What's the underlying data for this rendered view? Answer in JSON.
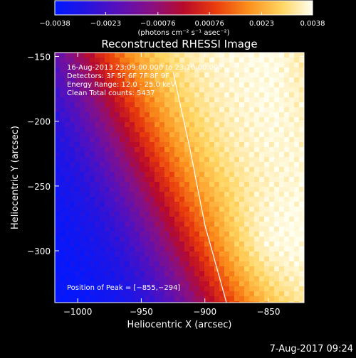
{
  "chart_data": {
    "type": "heatmap",
    "title": "Reconstructed RHESSI Image",
    "xlabel": "Heliocentric X (arcsec)",
    "ylabel": "Heliocentric Y (arcsec)",
    "xlim": [
      -1018,
      -822
    ],
    "ylim": [
      -340,
      -147
    ],
    "x_ticks": [
      {
        "value": -1000,
        "label": "−1000"
      },
      {
        "value": -950,
        "label": "−950"
      },
      {
        "value": -900,
        "label": "−900"
      },
      {
        "value": -850,
        "label": "−850"
      }
    ],
    "y_ticks": [
      {
        "value": -150,
        "label": "−150"
      },
      {
        "value": -200,
        "label": "−200"
      },
      {
        "value": -250,
        "label": "−250"
      },
      {
        "value": -300,
        "label": "−300"
      }
    ],
    "colorbar": {
      "min": -0.0038,
      "max": 0.0038,
      "ticks": [
        {
          "value": -0.0038,
          "label": "−0.0038"
        },
        {
          "value": -0.0023,
          "label": "−0.0023"
        },
        {
          "value": -0.00076,
          "label": "−0.00076"
        },
        {
          "value": 0.00076,
          "label": "0.00076"
        },
        {
          "value": 0.0023,
          "label": "0.0023"
        },
        {
          "value": 0.0038,
          "label": "0.0038"
        }
      ],
      "units": "(photons cm⁻² s⁻¹ asec⁻²)"
    },
    "peak": {
      "x": -855,
      "y": -294
    },
    "limb_curve": [
      [
        -925,
        -162
      ],
      [
        -912,
        -220
      ],
      [
        -900,
        -280
      ],
      [
        -883,
        -340
      ]
    ],
    "annotations": [
      "16-Aug-2013 23:09:00.000 to 23:10:00.000",
      "Detectors: 3F 5F 6F 7F 8F 9F",
      "Energy Range: 12.0 - 25.0 keV",
      "Clean    Total counts: 5437",
      "Position of Peak = [−855,−294]"
    ]
  },
  "footer": {
    "timestamp": "7-Aug-2017 09:24"
  }
}
